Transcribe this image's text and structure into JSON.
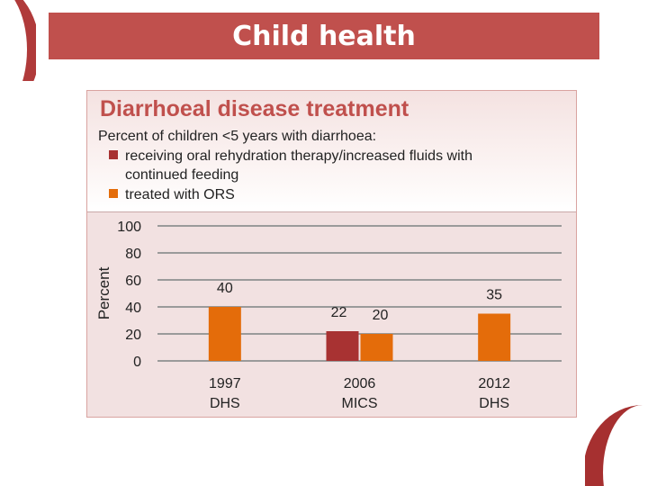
{
  "slide": {
    "title": "Child health"
  },
  "colors": {
    "title_bar": "#c0504d",
    "series_1": "#a83232",
    "series_2": "#e46c0a",
    "chart_title": "#c0504d"
  },
  "chart_data": {
    "type": "bar",
    "title": "Diarrhoeal disease treatment",
    "subtitle": "Percent of children <5 years with diarrhoea:",
    "ylabel": "Percent",
    "xlabel": "",
    "ylim": [
      0,
      100
    ],
    "yticks": [
      0,
      20,
      40,
      60,
      80,
      100
    ],
    "grid": true,
    "legend_placement": "top-left",
    "categories": [
      {
        "line1": "1997",
        "line2": "DHS"
      },
      {
        "line1": "2006",
        "line2": "MICS"
      },
      {
        "line1": "2012",
        "line2": "DHS"
      }
    ],
    "series": [
      {
        "name": "receiving oral rehydration therapy/increased fluids with continued feeding",
        "color": "#a83232",
        "values": [
          null,
          22,
          null
        ]
      },
      {
        "name": "treated with ORS",
        "color": "#e46c0a",
        "values": [
          40,
          20,
          35
        ]
      }
    ]
  }
}
